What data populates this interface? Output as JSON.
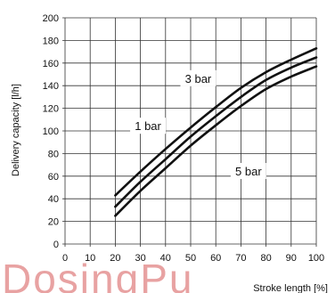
{
  "watermark": "DosingPu",
  "colors": {
    "curve": "#111111",
    "grid": "#333333",
    "watermark": "#e8a2a2"
  },
  "chart_data": {
    "type": "line",
    "xlabel": "Stroke length [%]",
    "ylabel": "Delivery capacity [l/h]",
    "xlim": [
      0,
      100
    ],
    "ylim": [
      0,
      200
    ],
    "xticks": [
      "0",
      "10",
      "20",
      "30",
      "40",
      "50",
      "60",
      "70",
      "80",
      "90",
      "100"
    ],
    "yticks": [
      "0",
      "20",
      "40",
      "60",
      "80",
      "100",
      "120",
      "140",
      "160",
      "180",
      "200"
    ],
    "grid": true,
    "x": [
      20,
      30,
      40,
      50,
      60,
      70,
      80,
      90,
      100
    ],
    "series": [
      {
        "name": "1 bar",
        "values": [
          43,
          64,
          84,
          103,
          121,
          138,
          152,
          163,
          173
        ]
      },
      {
        "name": "3 bar",
        "values": [
          33,
          55,
          75,
          95,
          113,
          130,
          145,
          156,
          165
        ]
      },
      {
        "name": "5 bar",
        "values": [
          25,
          47,
          67,
          87,
          105,
          122,
          137,
          148,
          157
        ]
      }
    ],
    "annotations": [
      {
        "text": "1 bar",
        "x": 33,
        "y": 103
      },
      {
        "text": "3 bar",
        "x": 53,
        "y": 145
      },
      {
        "text": "5 bar",
        "x": 73,
        "y": 63
      }
    ]
  }
}
